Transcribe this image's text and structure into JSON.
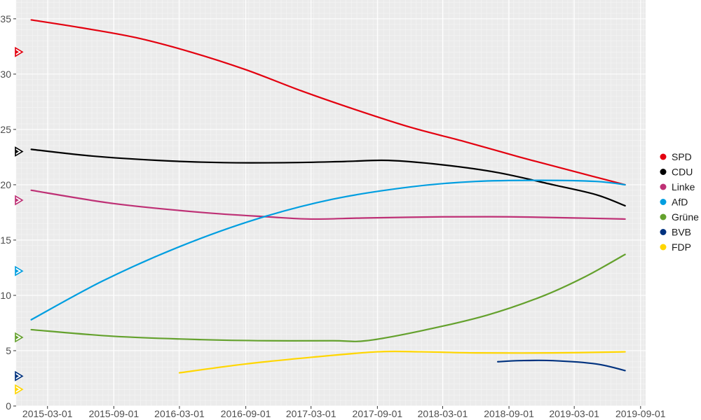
{
  "chart_data": {
    "type": "line",
    "title": "",
    "xlabel": "",
    "ylabel": "",
    "x_ticks": [
      "2015-03-01",
      "2015-09-01",
      "2016-03-01",
      "2016-09-01",
      "2017-03-01",
      "2017-09-01",
      "2018-03-01",
      "2018-09-01",
      "2019-03-01",
      "2019-09-01"
    ],
    "y_ticks": [
      0,
      5,
      10,
      15,
      20,
      25,
      30,
      35
    ],
    "xlim": [
      "2014-12-04",
      "2019-09-15"
    ],
    "ylim": [
      0,
      36.7
    ],
    "grid": true,
    "legend_position": "right",
    "series": [
      {
        "name": "SPD",
        "color": "#e3000f",
        "points": [
          [
            "2015-01-15",
            34.9
          ],
          [
            "2015-06-01",
            34.2
          ],
          [
            "2015-11-01",
            33.3
          ],
          [
            "2016-04-01",
            32.0
          ],
          [
            "2016-09-01",
            30.4
          ],
          [
            "2017-02-01",
            28.5
          ],
          [
            "2017-07-01",
            26.8
          ],
          [
            "2017-12-01",
            25.2
          ],
          [
            "2018-05-01",
            23.9
          ],
          [
            "2018-10-01",
            22.5
          ],
          [
            "2019-03-01",
            21.2
          ],
          [
            "2019-07-20",
            20.0
          ]
        ],
        "election_marker": 32.0
      },
      {
        "name": "CDU",
        "color": "#000000",
        "points": [
          [
            "2015-01-15",
            23.2
          ],
          [
            "2015-07-01",
            22.6
          ],
          [
            "2016-01-01",
            22.2
          ],
          [
            "2016-07-01",
            22.0
          ],
          [
            "2017-01-01",
            22.0
          ],
          [
            "2017-06-01",
            22.1
          ],
          [
            "2017-10-01",
            22.2
          ],
          [
            "2018-03-01",
            21.8
          ],
          [
            "2018-08-01",
            21.1
          ],
          [
            "2019-01-01",
            20.0
          ],
          [
            "2019-05-01",
            19.1
          ],
          [
            "2019-07-20",
            18.1
          ]
        ],
        "election_marker": 23.0
      },
      {
        "name": "Linke",
        "color": "#be3075",
        "points": [
          [
            "2015-01-15",
            19.5
          ],
          [
            "2015-09-01",
            18.3
          ],
          [
            "2016-05-01",
            17.5
          ],
          [
            "2016-11-01",
            17.1
          ],
          [
            "2017-03-01",
            16.9
          ],
          [
            "2017-08-01",
            17.0
          ],
          [
            "2018-03-01",
            17.1
          ],
          [
            "2018-09-01",
            17.1
          ],
          [
            "2019-03-01",
            17.0
          ],
          [
            "2019-07-20",
            16.9
          ]
        ],
        "election_marker": 18.6
      },
      {
        "name": "AfD",
        "color": "#009ee0",
        "points": [
          [
            "2015-01-15",
            7.8
          ],
          [
            "2015-08-01",
            11.3
          ],
          [
            "2016-03-01",
            14.4
          ],
          [
            "2016-10-01",
            16.9
          ],
          [
            "2017-05-01",
            18.7
          ],
          [
            "2017-12-01",
            19.8
          ],
          [
            "2018-06-01",
            20.3
          ],
          [
            "2018-12-01",
            20.4
          ],
          [
            "2019-05-01",
            20.3
          ],
          [
            "2019-07-20",
            20.0
          ]
        ],
        "election_marker": 12.2
      },
      {
        "name": "Grüne",
        "color": "#64a12d",
        "points": [
          [
            "2015-01-15",
            6.9
          ],
          [
            "2015-09-01",
            6.3
          ],
          [
            "2016-05-01",
            6.0
          ],
          [
            "2016-11-01",
            5.9
          ],
          [
            "2017-05-01",
            5.9
          ],
          [
            "2017-08-01",
            5.9
          ],
          [
            "2018-01-01",
            6.8
          ],
          [
            "2018-07-01",
            8.2
          ],
          [
            "2018-12-01",
            9.9
          ],
          [
            "2019-04-01",
            11.7
          ],
          [
            "2019-07-20",
            13.7
          ]
        ],
        "election_marker": 6.2
      },
      {
        "name": "BVB",
        "color": "#00327f",
        "points": [
          [
            "2018-08-01",
            4.0
          ],
          [
            "2018-10-01",
            4.1
          ],
          [
            "2019-01-01",
            4.1
          ],
          [
            "2019-05-01",
            3.8
          ],
          [
            "2019-07-20",
            3.2
          ]
        ],
        "election_marker": 2.7
      },
      {
        "name": "FDP",
        "color": "#ffd600",
        "points": [
          [
            "2016-03-01",
            3.0
          ],
          [
            "2016-09-01",
            3.8
          ],
          [
            "2017-03-01",
            4.4
          ],
          [
            "2017-09-01",
            4.9
          ],
          [
            "2018-01-01",
            4.9
          ],
          [
            "2018-06-01",
            4.8
          ],
          [
            "2019-01-01",
            4.8
          ],
          [
            "2019-07-20",
            4.9
          ]
        ],
        "election_marker": 1.5
      }
    ]
  }
}
